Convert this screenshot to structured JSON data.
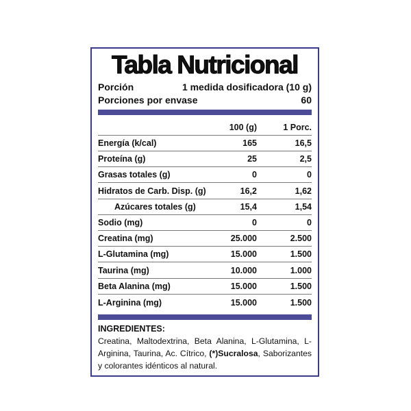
{
  "title": "Tabla Nutricional",
  "serving": {
    "label": "Porción",
    "value": "1 medida dosificadora (10 g)"
  },
  "servings_per_container": {
    "label": "Porciones por envase",
    "value": "60"
  },
  "colors": {
    "border": "#3b3b8e",
    "bar": "#4b4b98"
  },
  "table": {
    "headers": [
      "",
      "100 (g)",
      "1 Porc."
    ],
    "rows": [
      {
        "label": "Energía (k/cal)",
        "per100": "165",
        "perServing": "16,5"
      },
      {
        "label": "Proteína (g)",
        "per100": "25",
        "perServing": "2,5"
      },
      {
        "label": "Grasas totales (g)",
        "per100": "0",
        "perServing": "0"
      },
      {
        "label": "Hidratos de Carb. Disp. (g)",
        "per100": "16,2",
        "perServing": "1,62"
      },
      {
        "label": "Azúcares totales (g)",
        "per100": "15,4",
        "perServing": "1,54"
      },
      {
        "label": "Sodio (mg)",
        "per100": "0",
        "perServing": "0"
      },
      {
        "label": "Creatina (mg)",
        "per100": "25.000",
        "perServing": "2.500"
      },
      {
        "label": "L-Glutamina (mg)",
        "per100": "15.000",
        "perServing": "1.500"
      },
      {
        "label": "Taurina (mg)",
        "per100": "10.000",
        "perServing": "1.000"
      },
      {
        "label": "Beta Alanina (mg)",
        "per100": "15.000",
        "perServing": "1.500"
      },
      {
        "label": "L-Arginina (mg)",
        "per100": "15.000",
        "perServing": "1.500"
      }
    ]
  },
  "ingredients": {
    "heading": "INGREDIENTES:",
    "text_before": "Creatina, Maltodextrina, Beta Alanina, L-Glutamina, L-Arginina, Taurina, Ac. Cítrico, ",
    "bold": "(*)Sucralosa",
    "text_after": ", Saborizantes y colorantes idénticos al natural."
  }
}
